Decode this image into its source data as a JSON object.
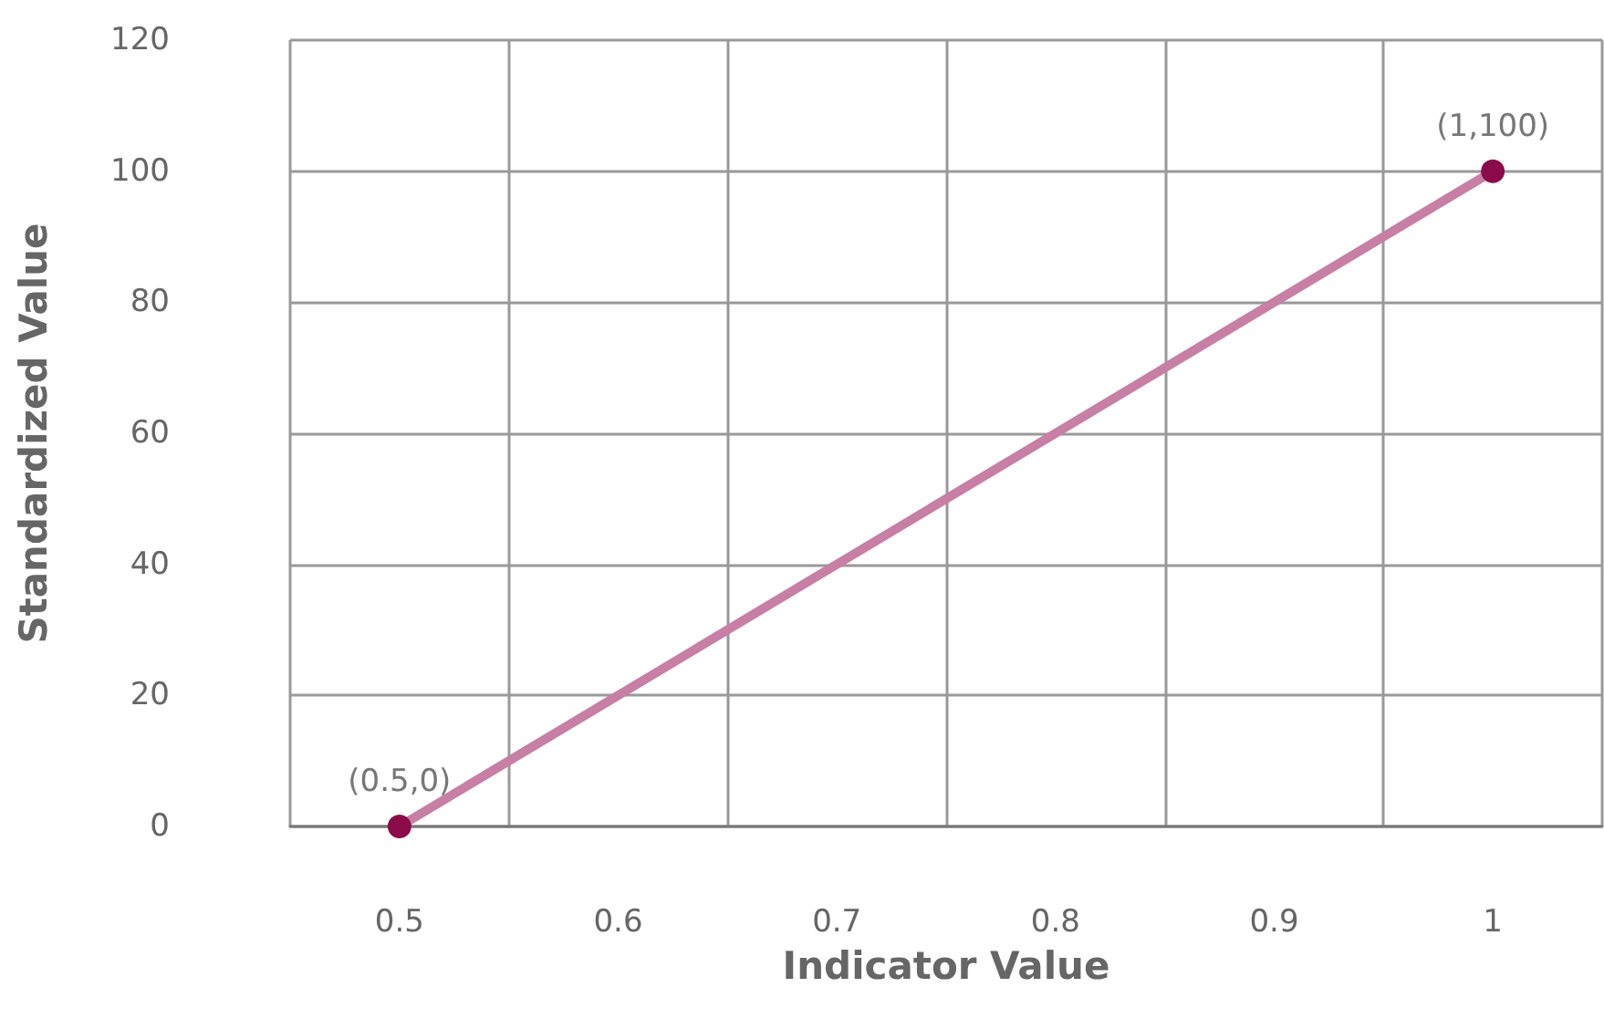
{
  "chart_data": {
    "type": "line",
    "xlabel": "Indicator Value",
    "ylabel": "Standardized Value",
    "x": [
      0.5,
      1
    ],
    "series": [
      {
        "color": "#c77fa6",
        "colors": [
          "#8b0a4a",
          "#8b0a4a"
        ],
        "values": [
          0,
          100
        ]
      }
    ],
    "xlim": [
      0.45,
      1.05
    ],
    "xticks": [
      {
        "value": 0.45,
        "label": null
      },
      0.5,
      {
        "value": 0.55,
        "label": null
      },
      0.6,
      {
        "value": 0.65,
        "label": null
      },
      0.7,
      {
        "value": 0.75,
        "label": null
      },
      0.8,
      {
        "value": 0.85,
        "label": null
      },
      0.9,
      {
        "value": 0.95,
        "label": null
      },
      1,
      {
        "value": 1.05,
        "label": null
      }
    ],
    "ylim": [
      0,
      120
    ],
    "yticks": [
      0,
      20,
      40,
      60,
      80,
      100,
      120
    ],
    "grid": true,
    "marker": "circle",
    "line_style": "solid",
    "annotations": [
      {
        "text": "(0.5,0)",
        "x": 0.5,
        "y": 0
      },
      {
        "text": "(1,100)",
        "x": 1,
        "y": 100
      }
    ]
  }
}
